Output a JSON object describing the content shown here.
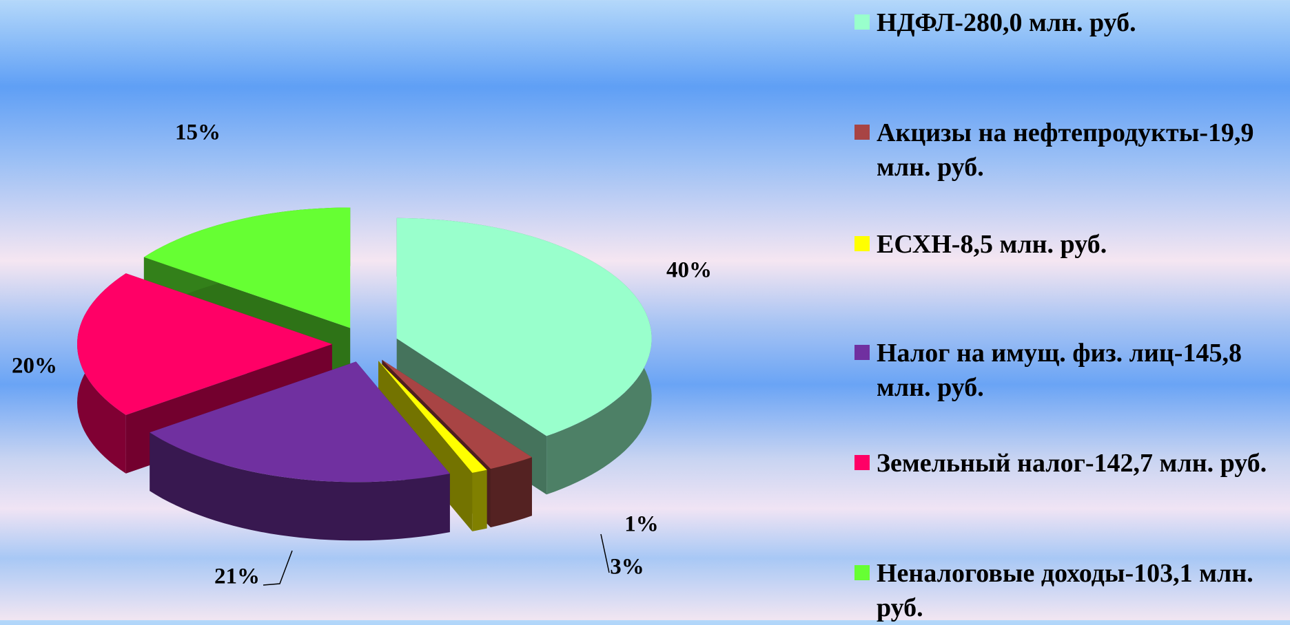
{
  "chart_data": {
    "type": "pie3d",
    "categories": [
      "НДФЛ-280,0 млн. руб.",
      "Акцизы на нефтепродукты-19,9  млн. руб.",
      "ЕСХН-8,5  млн. руб.",
      "Налог на имущ. физ. лиц-145,8 млн. руб.",
      "Земельный налог-142,7 млн. руб.",
      "Неналоговые доходы-103,1 млн. руб."
    ],
    "values": [
      40,
      3,
      1,
      21,
      20,
      15
    ],
    "value_labels": [
      "40%",
      "3%",
      "1%",
      "21%",
      "20%",
      "15%"
    ],
    "colors": [
      "#99ffcc",
      "#a84444",
      "#ffff00",
      "#7030a0",
      "#ff0066",
      "#66ff33"
    ],
    "legend": "right"
  }
}
